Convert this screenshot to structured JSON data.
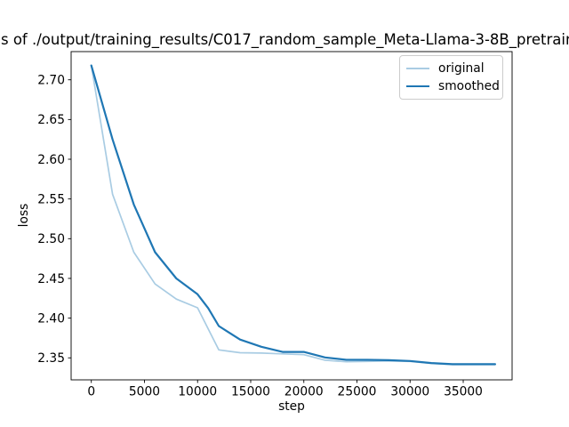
{
  "chart_data": {
    "type": "line",
    "title": "s of ./output/training_results/C017_random_sample_Meta-Llama-3-8B_pretrain",
    "title_note": "title is clipped at both image edges",
    "xlabel": "step",
    "ylabel": "loss",
    "xlim": [
      -1900,
      39600
    ],
    "ylim": [
      2.3223,
      2.7355
    ],
    "grid": false,
    "legend_position": "upper right",
    "background_color": "#ffffff",
    "axis_color": "#000000",
    "xticks": [
      {
        "value": 0,
        "label": "0"
      },
      {
        "value": 5000,
        "label": "5000"
      },
      {
        "value": 10000,
        "label": "10000"
      },
      {
        "value": 15000,
        "label": "15000"
      },
      {
        "value": 20000,
        "label": "20000"
      },
      {
        "value": 25000,
        "label": "25000"
      },
      {
        "value": 30000,
        "label": "30000"
      },
      {
        "value": 35000,
        "label": "35000"
      }
    ],
    "yticks": [
      {
        "value": 2.35,
        "label": "2.35"
      },
      {
        "value": 2.4,
        "label": "2.40"
      },
      {
        "value": 2.45,
        "label": "2.45"
      },
      {
        "value": 2.5,
        "label": "2.50"
      },
      {
        "value": 2.55,
        "label": "2.55"
      },
      {
        "value": 2.6,
        "label": "2.60"
      },
      {
        "value": 2.65,
        "label": "2.65"
      },
      {
        "value": 2.7,
        "label": "2.70"
      }
    ],
    "series": [
      {
        "name": "original",
        "color": "#a9cce3",
        "line_width": 1.7,
        "points": [
          [
            0,
            2.718
          ],
          [
            2000,
            2.556
          ],
          [
            4000,
            2.483
          ],
          [
            6000,
            2.443
          ],
          [
            8000,
            2.424
          ],
          [
            10000,
            2.413
          ],
          [
            12000,
            2.36
          ],
          [
            14000,
            2.3565
          ],
          [
            16000,
            2.356
          ],
          [
            18000,
            2.355
          ],
          [
            20000,
            2.354
          ],
          [
            22000,
            2.347
          ],
          [
            24000,
            2.345
          ],
          [
            26000,
            2.3455
          ],
          [
            28000,
            2.346
          ],
          [
            30000,
            2.3455
          ],
          [
            32000,
            2.343
          ],
          [
            34000,
            2.3415
          ],
          [
            36000,
            2.3415
          ],
          [
            38000,
            2.3415
          ]
        ]
      },
      {
        "name": "smoothed",
        "color": "#1f77b4",
        "line_width": 2.2,
        "points": [
          [
            0,
            2.718
          ],
          [
            2000,
            2.625
          ],
          [
            4000,
            2.543
          ],
          [
            6000,
            2.483
          ],
          [
            8000,
            2.45
          ],
          [
            10000,
            2.43
          ],
          [
            11000,
            2.4125
          ],
          [
            12000,
            2.39
          ],
          [
            14000,
            2.373
          ],
          [
            16000,
            2.364
          ],
          [
            18000,
            2.3575
          ],
          [
            20000,
            2.3575
          ],
          [
            22000,
            2.3505
          ],
          [
            24000,
            2.3475
          ],
          [
            26000,
            2.3475
          ],
          [
            28000,
            2.347
          ],
          [
            30000,
            2.346
          ],
          [
            32000,
            2.3435
          ],
          [
            34000,
            2.342
          ],
          [
            36000,
            2.342
          ],
          [
            38000,
            2.342
          ]
        ]
      }
    ]
  }
}
